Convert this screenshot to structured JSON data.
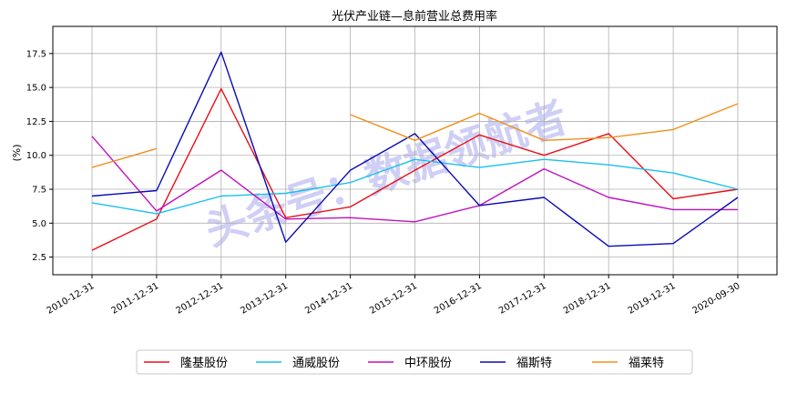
{
  "chart_data": {
    "type": "line",
    "title": "光伏产业链—息前营业总费用率",
    "ylabel": "(%)",
    "xlabel": "",
    "ylim": [
      1.2,
      19.5
    ],
    "yticks": [
      2.5,
      5.0,
      7.5,
      10.0,
      12.5,
      15.0,
      17.5
    ],
    "categories": [
      "2010-12-31",
      "2011-12-31",
      "2012-12-31",
      "2013-12-31",
      "2014-12-31",
      "2015-12-31",
      "2016-12-31",
      "2017-12-31",
      "2018-12-31",
      "2019-12-31",
      "2020-09-30"
    ],
    "grid": true,
    "legend_position": "bottom",
    "series": [
      {
        "name": "隆基股份",
        "color": "#e8101a",
        "values": [
          3.0,
          5.3,
          14.9,
          5.4,
          6.2,
          8.9,
          11.5,
          10.0,
          11.6,
          6.8,
          7.5
        ]
      },
      {
        "name": "通威股份",
        "color": "#19c0ee",
        "values": [
          6.5,
          5.7,
          7.0,
          7.2,
          8.0,
          9.7,
          9.1,
          9.7,
          9.3,
          8.7,
          7.5
        ]
      },
      {
        "name": "中环股份",
        "color": "#c010c0",
        "values": [
          11.4,
          5.9,
          8.9,
          5.3,
          5.4,
          5.1,
          6.3,
          9.0,
          6.9,
          6.0,
          6.0
        ]
      },
      {
        "name": "福斯特",
        "color": "#0a0ab4",
        "values": [
          7.0,
          7.4,
          17.6,
          3.6,
          8.9,
          11.6,
          6.3,
          6.9,
          3.3,
          3.5,
          6.9
        ]
      },
      {
        "name": "福莱特",
        "color": "#f0901a",
        "values": [
          9.1,
          10.5,
          null,
          null,
          13.0,
          11.1,
          13.1,
          11.1,
          11.3,
          11.9,
          13.8
        ]
      }
    ],
    "watermark": "头条号：数据领航者"
  }
}
